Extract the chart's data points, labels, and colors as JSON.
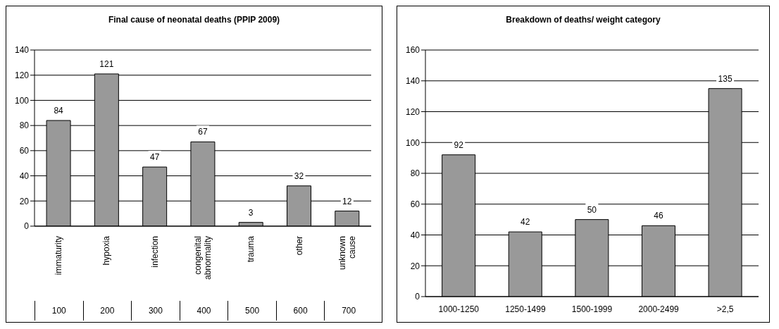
{
  "chart_data": [
    {
      "type": "bar",
      "title": "Final cause of neonatal deaths (PPIP 2009)",
      "categories": [
        "immaturity",
        "hypoxia",
        "infection",
        "congenital abnormality",
        "trauma",
        "other",
        "unknown cause"
      ],
      "values": [
        84,
        121,
        47,
        67,
        3,
        32,
        12
      ],
      "color": "#999999",
      "ylim": [
        0,
        140
      ],
      "yticks": [
        0,
        20,
        40,
        60,
        80,
        100,
        120,
        140
      ],
      "grid": "y",
      "data_labels": true,
      "legend": false,
      "annotations": [
        "100",
        "200",
        "300",
        "400",
        "500",
        "600",
        "700"
      ]
    },
    {
      "type": "bar",
      "title": "Breakdown of deaths/ weight category",
      "categories": [
        "1000-1250",
        "1250-1499",
        "1500-1999",
        "2000-2499",
        ">2,5"
      ],
      "values": [
        92,
        42,
        50,
        46,
        135
      ],
      "color": "#999999",
      "ylim": [
        0,
        160
      ],
      "yticks": [
        0,
        20,
        40,
        60,
        80,
        100,
        120,
        140,
        160
      ],
      "grid": "y",
      "data_labels": true,
      "legend": false
    }
  ]
}
